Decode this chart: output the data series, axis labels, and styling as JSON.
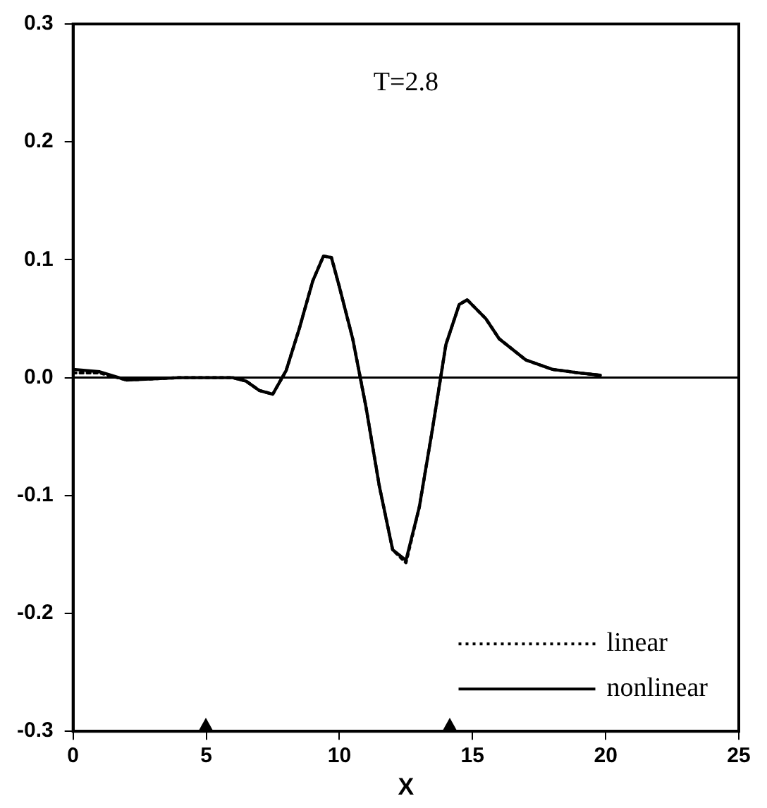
{
  "chart_data": {
    "type": "line",
    "title": "T=2.8",
    "xlabel": "X",
    "xlim": [
      0,
      25
    ],
    "xticks": [
      0,
      5,
      10,
      15,
      20,
      25
    ],
    "ylim": [
      -0.3,
      0.3
    ],
    "yticks": [
      {
        "value": -0.3,
        "label": "-0.3"
      },
      {
        "value": -0.2,
        "label": "-0.2"
      },
      {
        "value": -0.1,
        "label": "-0.1"
      },
      {
        "value": 0,
        "label": "0.0"
      },
      {
        "value": 0.1,
        "label": "0.1"
      },
      {
        "value": 0.2,
        "label": "0.2"
      },
      {
        "value": 0.3,
        "label": "0.3"
      }
    ],
    "grid": false,
    "legend": "bottom right",
    "marker": "none",
    "ref_lines": [
      {
        "axis": "y",
        "value": 0
      }
    ],
    "series": [
      {
        "name": "linear",
        "color": "#000000",
        "line_style": "dotted",
        "x": [
          0,
          1,
          2,
          3,
          4,
          5,
          6,
          6.5,
          7,
          7.5,
          8,
          8.5,
          9,
          9.4,
          9.7,
          10,
          10.5,
          11,
          11.5,
          12,
          12.5,
          13,
          13.5,
          14,
          14.5,
          14.8,
          15.5,
          16,
          17,
          18,
          19,
          19.8
        ],
        "values": [
          0.004,
          0.004,
          -0.002,
          -0.001,
          0,
          0,
          0,
          -0.003,
          -0.011,
          -0.014,
          0.006,
          0.042,
          0.082,
          0.103,
          0.102,
          0.077,
          0.033,
          -0.025,
          -0.092,
          -0.146,
          -0.157,
          -0.11,
          -0.043,
          0.028,
          0.062,
          0.066,
          0.05,
          0.033,
          0.015,
          0.007,
          0.004,
          0.002
        ]
      },
      {
        "name": "nonlinear",
        "color": "#000000",
        "line_style": "solid",
        "x": [
          0,
          1,
          2,
          3,
          4,
          5,
          6,
          6.5,
          7,
          7.5,
          8,
          8.5,
          9,
          9.4,
          9.7,
          10,
          10.5,
          11,
          11.5,
          12,
          12.5,
          13,
          13.5,
          14,
          14.5,
          14.8,
          15.5,
          16,
          17,
          18,
          19,
          19.8
        ],
        "values": [
          0.007,
          0.005,
          -0.002,
          -0.001,
          0,
          0,
          0,
          -0.003,
          -0.011,
          -0.014,
          0.006,
          0.042,
          0.082,
          0.103,
          0.102,
          0.077,
          0.033,
          -0.025,
          -0.092,
          -0.146,
          -0.155,
          -0.11,
          -0.043,
          0.028,
          0.062,
          0.066,
          0.05,
          0.033,
          0.015,
          0.007,
          0.004,
          0.002
        ]
      }
    ]
  }
}
